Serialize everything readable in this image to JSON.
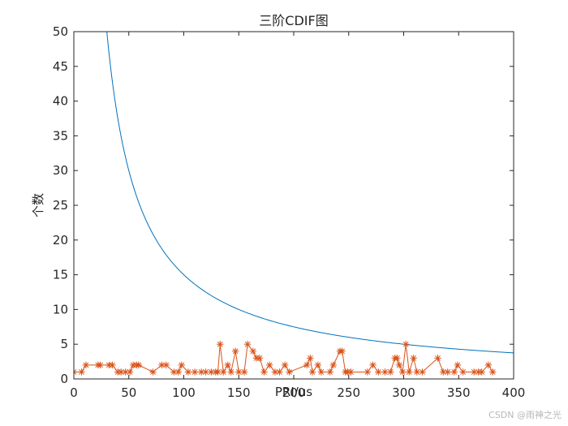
{
  "chart_data": {
    "type": "line",
    "title": "三阶CDIF图",
    "xlabel": "PRI/us",
    "ylabel": "个数",
    "xlim": [
      0,
      400
    ],
    "ylim": [
      0,
      50
    ],
    "xticks": [
      0,
      50,
      100,
      150,
      200,
      250,
      300,
      350,
      400
    ],
    "yticks": [
      0,
      5,
      10,
      15,
      20,
      25,
      30,
      35,
      40,
      45,
      50
    ],
    "grid": false,
    "box": true,
    "series": [
      {
        "kind": "threshold-curve",
        "color": "#0072BD",
        "marker": "none",
        "formula": "y = 1500 / x",
        "x_start": 30,
        "x_end": 400
      },
      {
        "kind": "counts",
        "color": "#D95319",
        "marker": "asterisk",
        "x": [
          0,
          7,
          11,
          22,
          24,
          32,
          35,
          40,
          43,
          47,
          51,
          54,
          57,
          59,
          72,
          80,
          84,
          91,
          95,
          98,
          104,
          110,
          116,
          120,
          125,
          129,
          131,
          133,
          136,
          140,
          143,
          147,
          150,
          155,
          158,
          163,
          166,
          169,
          173,
          178,
          183,
          187,
          192,
          196,
          212,
          215,
          217,
          222,
          225,
          233,
          236,
          242,
          244,
          247,
          249,
          252,
          267,
          272,
          277,
          283,
          288,
          292,
          294,
          296,
          299,
          302,
          305,
          309,
          312,
          317,
          331,
          336,
          340,
          346,
          349,
          354,
          364,
          368,
          371,
          377,
          381
        ],
        "y": [
          1,
          1,
          2,
          2,
          2,
          2,
          2,
          1,
          1,
          1,
          1,
          2,
          2,
          2,
          1,
          2,
          2,
          1,
          1,
          2,
          1,
          1,
          1,
          1,
          1,
          1,
          1,
          5,
          1,
          2,
          1,
          4,
          1,
          1,
          5,
          4,
          3,
          3,
          1,
          2,
          1,
          1,
          2,
          1,
          2,
          3,
          1,
          2,
          1,
          1,
          2,
          4,
          4,
          1,
          1,
          1,
          1,
          2,
          1,
          1,
          1,
          3,
          3,
          2,
          1,
          5,
          1,
          3,
          1,
          1,
          3,
          1,
          1,
          1,
          2,
          1,
          1,
          1,
          1,
          2,
          1
        ]
      }
    ]
  },
  "watermark": "CSDN @雨神之光"
}
